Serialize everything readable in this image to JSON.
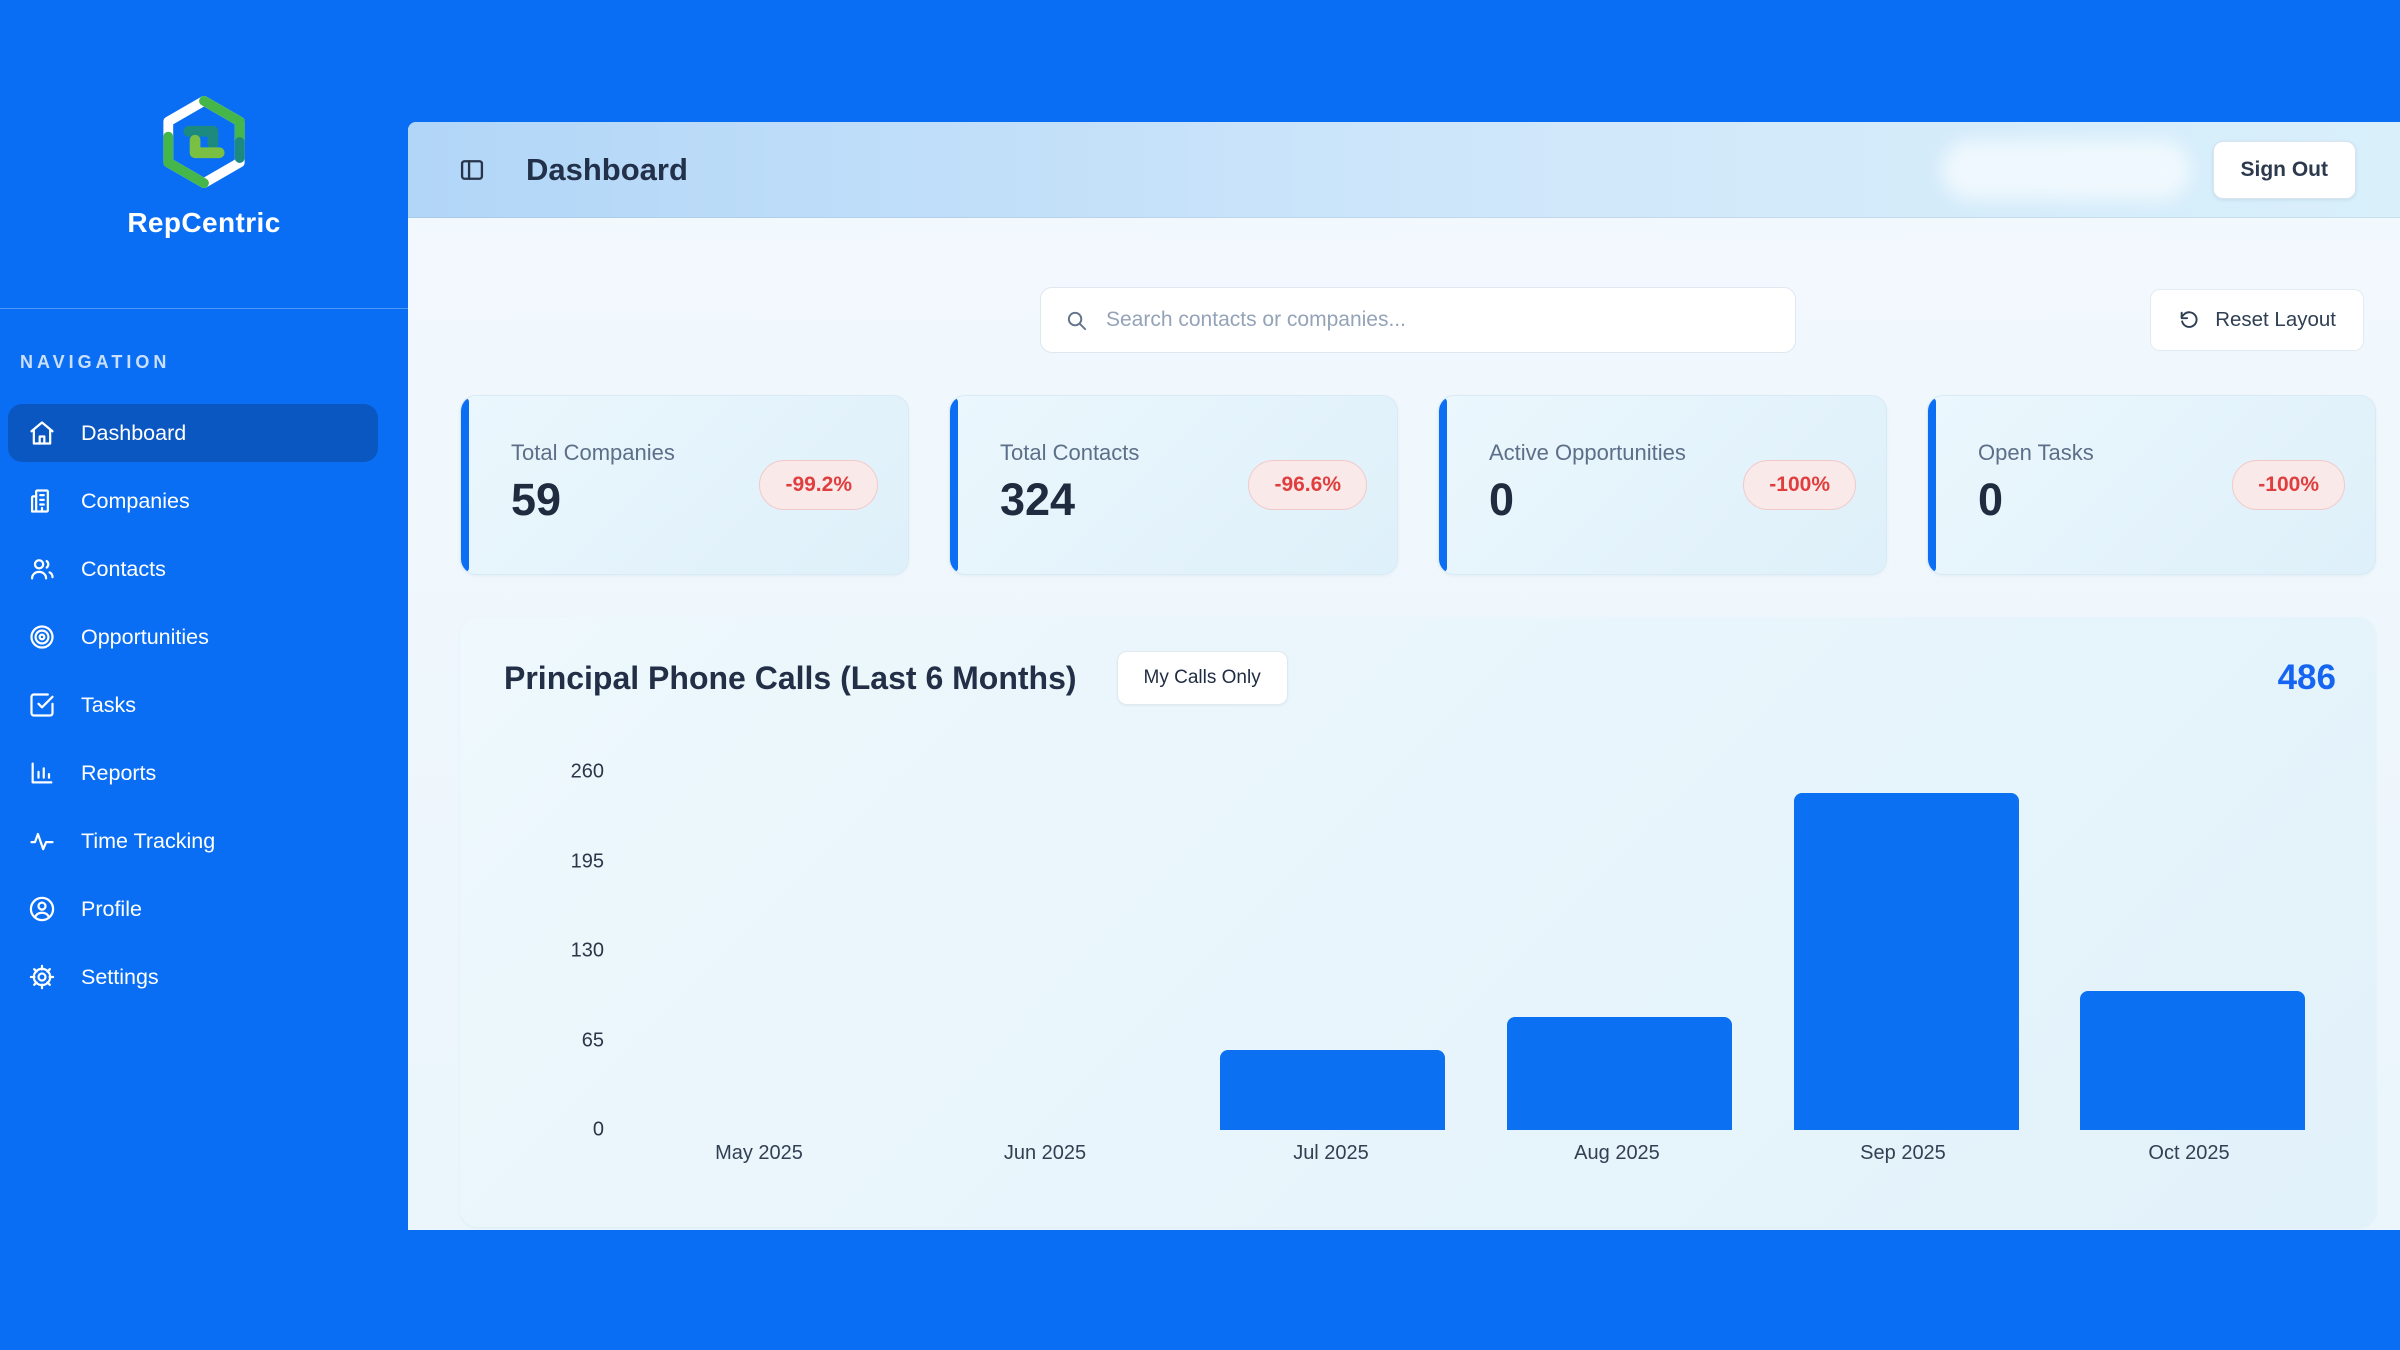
{
  "brand": {
    "name": "RepCentric"
  },
  "sidebar": {
    "section_label": "NAVIGATION",
    "items": [
      {
        "label": "Dashboard",
        "icon": "home-icon",
        "active": true
      },
      {
        "label": "Companies",
        "icon": "building-icon",
        "active": false
      },
      {
        "label": "Contacts",
        "icon": "users-icon",
        "active": false
      },
      {
        "label": "Opportunities",
        "icon": "target-icon",
        "active": false
      },
      {
        "label": "Tasks",
        "icon": "check-square-icon",
        "active": false
      },
      {
        "label": "Reports",
        "icon": "bar-chart-icon",
        "active": false
      },
      {
        "label": "Time Tracking",
        "icon": "activity-icon",
        "active": false
      },
      {
        "label": "Profile",
        "icon": "user-circle-icon",
        "active": false
      },
      {
        "label": "Settings",
        "icon": "gear-icon",
        "active": false
      }
    ]
  },
  "header": {
    "title": "Dashboard",
    "sign_out_label": "Sign Out"
  },
  "toolbar": {
    "search_placeholder": "Search contacts or companies...",
    "reset_label": "Reset Layout"
  },
  "stats": [
    {
      "label": "Total Companies",
      "value": "59",
      "change": "-99.2%"
    },
    {
      "label": "Total Contacts",
      "value": "324",
      "change": "-96.6%"
    },
    {
      "label": "Active Opportunities",
      "value": "0",
      "change": "-100%"
    },
    {
      "label": "Open Tasks",
      "value": "0",
      "change": "-100%"
    }
  ],
  "chart": {
    "title": "Principal Phone Calls (Last 6 Months)",
    "filter_button_label": "My Calls Only",
    "total": "486"
  },
  "chart_data": {
    "type": "bar",
    "title": "Principal Phone Calls (Last 6 Months)",
    "categories": [
      "May 2025",
      "Jun 2025",
      "Jul 2025",
      "Aug 2025",
      "Sep 2025",
      "Oct 2025"
    ],
    "values": [
      0,
      0,
      58,
      82,
      245,
      101
    ],
    "total": 486,
    "xlabel": "",
    "ylabel": "",
    "ylim": [
      0,
      260
    ],
    "yticks": [
      0,
      65,
      130,
      195,
      260
    ],
    "grid": false,
    "legend_position": "none",
    "bar_color": "#0c70f2"
  },
  "colors": {
    "page_blue": "#0a6ef4",
    "active_nav_blue": "#0b57c2",
    "accent_blue": "#0b6ef3",
    "bar_blue": "#0c70f2",
    "total_blue": "#1565f2",
    "badge_red_text": "#e03e3e",
    "badge_red_bg": "#f9e9e9",
    "header_gradient_left": "#b2d6f8",
    "header_gradient_right": "#d9f0fb",
    "card_bg": "#e5f3fb",
    "dark_navy_text": "#1f2b3e"
  }
}
